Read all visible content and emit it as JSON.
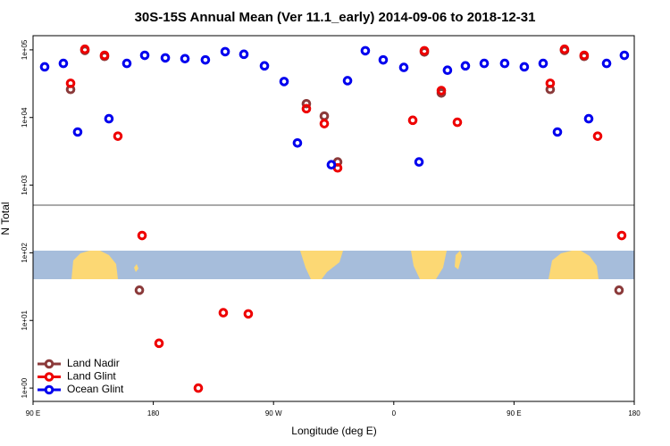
{
  "chart_data": {
    "type": "scatter",
    "title": "30S-15S Annual Mean (Ver 11.1_early)   2014-09-06 to 2018-12-31",
    "x_label": "Longitude (deg E)",
    "y_label": "N Total",
    "log_y": true,
    "legend": "bottom-left",
    "xlim": [
      90,
      540
    ],
    "xticks": [
      {
        "value": 90,
        "label": "90 E"
      },
      {
        "value": 180,
        "label": "180"
      },
      {
        "value": 270,
        "label": "90 W"
      },
      {
        "value": 360,
        "label": "0"
      },
      {
        "value": 450,
        "label": "90 E"
      },
      {
        "value": 540,
        "label": "180"
      }
    ],
    "ylim": [
      0.74,
      162000
    ],
    "yticks": [
      {
        "value": 1,
        "label": "1e+00"
      },
      {
        "value": 10,
        "label": "1e+01"
      },
      {
        "value": 100,
        "label": "1e+02"
      },
      {
        "value": 1000,
        "label": "1e+03"
      },
      {
        "value": 10000,
        "label": "1e+04"
      },
      {
        "value": 100000,
        "label": "1e+05"
      }
    ],
    "series": [
      {
        "name": "Land Nadir",
        "color": "#8b3a3a",
        "x": [
          118.1,
          128.8,
          143.5,
          169.6,
          294.6,
          308.0,
          318.0,
          382.9,
          395.6,
          477.1,
          487.8,
          502.5,
          528.6
        ],
        "values": [
          26000,
          98000,
          80000,
          28,
          16000,
          10500,
          2200,
          93000,
          23000,
          26000,
          98000,
          80000,
          28
        ]
      },
      {
        "name": "Land Glint",
        "color": "#ee0000",
        "x": [
          118.1,
          128.8,
          143.5,
          153.5,
          171.6,
          184.3,
          213.7,
          232.4,
          251.1,
          294.6,
          308.0,
          318.0,
          374.2,
          382.9,
          395.6,
          407.6,
          477.1,
          487.8,
          502.5,
          512.6,
          530.6
        ],
        "values": [
          32000,
          102000,
          83000,
          5300,
          180,
          4.6,
          1,
          13,
          12.5,
          13500,
          8100,
          1800,
          9100,
          97000,
          25000,
          8500,
          32000,
          102000,
          83000,
          5300,
          180
        ]
      },
      {
        "name": "Ocean Glint",
        "color": "#0000ee",
        "x": [
          98.7,
          112.7,
          123.4,
          146.8,
          160.2,
          173.6,
          189.0,
          203.7,
          219.0,
          233.8,
          247.8,
          263.2,
          277.9,
          287.9,
          313.3,
          325.4,
          338.7,
          352.1,
          367.5,
          378.9,
          400.2,
          413.6,
          427.7,
          443.0,
          457.7,
          471.8,
          482.5,
          505.9,
          519.3,
          532.6
        ],
        "values": [
          56000,
          63000,
          6100,
          9600,
          63000,
          83000,
          76000,
          74000,
          71000,
          94000,
          86000,
          58000,
          34000,
          4200,
          2000,
          35000,
          97000,
          71000,
          55000,
          2200,
          50000,
          58000,
          63000,
          63000,
          56000,
          63000,
          6100,
          9600,
          63000,
          83000
        ]
      }
    ]
  }
}
